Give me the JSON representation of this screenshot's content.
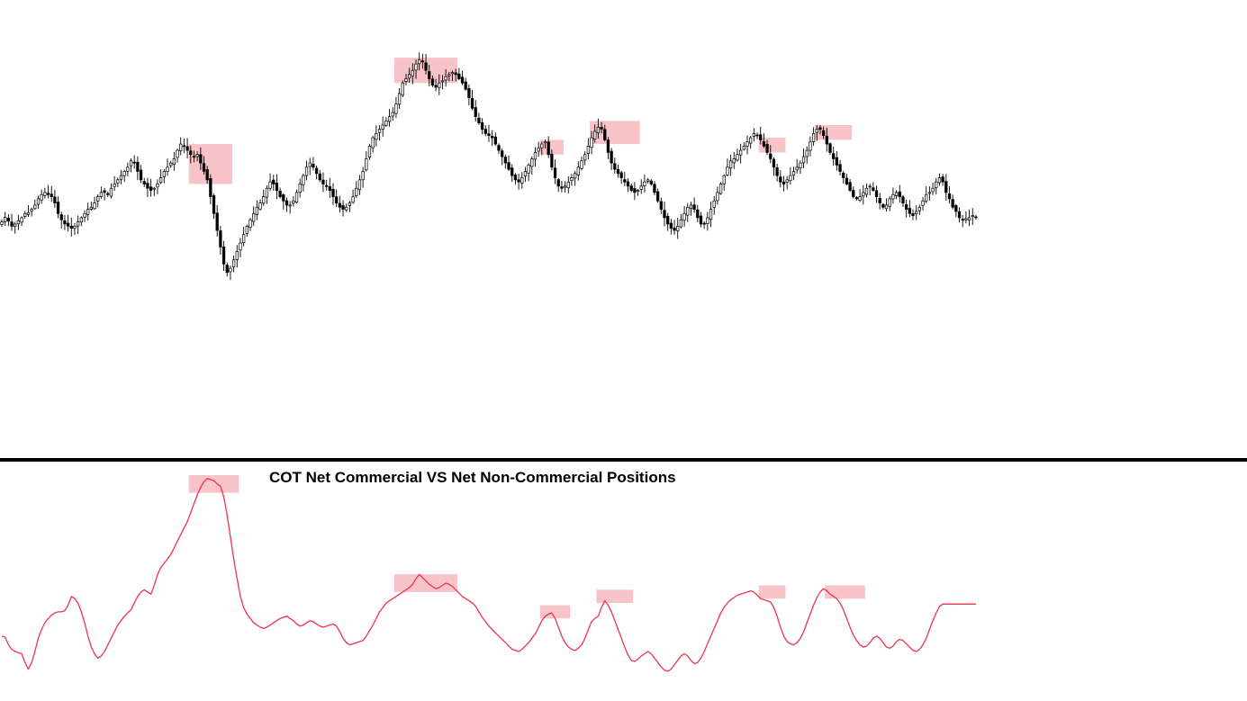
{
  "colors": {
    "background": "#ffffff",
    "bull_candle": "#ffffff",
    "bear_candle": "#000000",
    "candle_outline": "#000000",
    "wick": "#000000",
    "highlight": "#f7b9c0",
    "indicator_line": "#f0334b",
    "divider": "#000000",
    "title_text": "#000000"
  },
  "chart_data": [
    {
      "type": "candlestick",
      "title": "",
      "xlabel": "",
      "ylabel": "",
      "grid": false,
      "legend": "none",
      "x_count": 295,
      "ylim": [
        0,
        100
      ],
      "closes": [
        52.0,
        53.1,
        52.2,
        51.0,
        51.5,
        52.3,
        53.0,
        54.0,
        54.2,
        55.0,
        56.0,
        57.5,
        58.5,
        59.0,
        58.5,
        58.0,
        56.5,
        54.0,
        52.5,
        51.5,
        51.0,
        50.5,
        51.0,
        52.0,
        53.0,
        54.0,
        55.0,
        55.5,
        56.5,
        58.0,
        59.0,
        59.0,
        58.5,
        60.0,
        61.0,
        62.0,
        63.0,
        64.0,
        65.0,
        66.5,
        66.0,
        64.0,
        62.0,
        61.0,
        60.0,
        59.5,
        60.0,
        61.0,
        62.5,
        64.0,
        65.0,
        66.0,
        67.0,
        69.0,
        70.5,
        70.0,
        69.0,
        68.0,
        67.5,
        68.0,
        66.0,
        64.0,
        62.0,
        58.0,
        54.0,
        50.0,
        46.0,
        42.0,
        40.0,
        41.0,
        43.0,
        45.0,
        47.0,
        49.0,
        51.0,
        52.5,
        54.0,
        55.5,
        56.5,
        58.0,
        60.0,
        61.5,
        61.0,
        59.5,
        58.0,
        57.0,
        56.0,
        56.0,
        57.0,
        59.0,
        61.0,
        63.0,
        65.0,
        66.0,
        65.0,
        63.5,
        62.0,
        61.0,
        60.5,
        59.5,
        58.0,
        56.5,
        55.5,
        55.0,
        55.5,
        56.5,
        58.0,
        60.0,
        62.0,
        64.0,
        67.0,
        70.0,
        72.0,
        73.0,
        74.0,
        75.0,
        76.0,
        77.0,
        78.0,
        80.0,
        82.5,
        85.0,
        86.0,
        87.0,
        88.0,
        89.5,
        90.5,
        90.0,
        88.0,
        86.0,
        84.5,
        84.0,
        85.0,
        85.5,
        86.5,
        87.0,
        87.5,
        87.0,
        86.0,
        85.0,
        83.5,
        81.5,
        79.0,
        77.0,
        75.5,
        74.0,
        73.0,
        72.5,
        72.0,
        70.5,
        69.0,
        67.5,
        66.0,
        64.5,
        63.0,
        62.0,
        61.5,
        62.5,
        64.0,
        65.5,
        67.0,
        68.5,
        69.5,
        70.5,
        71.0,
        68.0,
        65.0,
        62.5,
        60.5,
        60.0,
        60.5,
        61.5,
        62.5,
        63.5,
        65.0,
        66.5,
        68.0,
        70.0,
        72.0,
        73.5,
        74.5,
        74.0,
        71.5,
        68.5,
        66.0,
        64.5,
        63.5,
        62.5,
        61.5,
        60.5,
        59.5,
        59.0,
        59.5,
        60.5,
        61.5,
        62.0,
        61.0,
        59.0,
        57.0,
        55.0,
        53.0,
        51.5,
        50.5,
        50.0,
        51.0,
        52.5,
        54.0,
        55.5,
        56.0,
        55.0,
        53.0,
        51.5,
        51.5,
        53.0,
        55.0,
        57.0,
        59.0,
        61.0,
        63.0,
        65.0,
        66.5,
        67.0,
        68.0,
        69.0,
        70.0,
        71.0,
        72.0,
        73.0,
        72.5,
        71.5,
        70.0,
        68.5,
        67.0,
        65.0,
        63.0,
        61.5,
        61.0,
        62.0,
        63.0,
        64.0,
        65.0,
        66.0,
        67.5,
        69.0,
        71.0,
        73.0,
        74.0,
        74.0,
        72.5,
        70.5,
        68.5,
        67.0,
        65.5,
        64.0,
        62.5,
        61.0,
        59.5,
        58.0,
        57.5,
        58.0,
        59.0,
        60.0,
        60.5,
        59.5,
        58.0,
        56.5,
        55.5,
        56.0,
        57.5,
        58.5,
        59.0,
        58.0,
        56.5,
        55.0,
        54.0,
        53.5,
        54.5,
        55.5,
        57.0,
        58.5,
        59.0,
        60.0,
        61.5,
        62.5,
        61.5,
        59.0,
        57.5,
        55.5,
        54.5,
        53.0,
        52.5,
        52.8,
        53.0,
        53.5,
        53.0
      ],
      "highlight_zones": [
        {
          "from": 57,
          "to": 69,
          "y_high": 70.5,
          "y_low": 61.0
        },
        {
          "from": 119,
          "to": 137,
          "y_high": 91.0,
          "y_low": 85.0
        },
        {
          "from": 163,
          "to": 169,
          "y_high": 71.5,
          "y_low": 68.0
        },
        {
          "from": 178,
          "to": 192,
          "y_high": 76.0,
          "y_low": 70.5
        },
        {
          "from": 229,
          "to": 236,
          "y_high": 72.0,
          "y_low": 68.5
        },
        {
          "from": 246,
          "to": 256,
          "y_high": 75.0,
          "y_low": 71.5
        }
      ]
    },
    {
      "type": "line",
      "title": "COT Net Commercial VS Net Non-Commercial Positions",
      "xlabel": "",
      "ylabel": "",
      "grid": false,
      "legend": "none",
      "x_count": 295,
      "ylim": [
        0,
        100
      ],
      "values": [
        27.0,
        26.5,
        23.0,
        21.0,
        20.0,
        19.5,
        19.0,
        15.0,
        12.0,
        15.0,
        20.0,
        26.0,
        30.0,
        33.0,
        35.0,
        36.5,
        37.5,
        38.0,
        38.0,
        38.5,
        41.0,
        45.0,
        44.0,
        42.0,
        38.0,
        33.0,
        27.0,
        22.0,
        19.0,
        17.0,
        18.0,
        20.0,
        23.0,
        26.0,
        29.0,
        32.0,
        34.0,
        36.0,
        37.5,
        39.0,
        42.0,
        45.0,
        47.0,
        48.0,
        47.0,
        46.0,
        50.0,
        55.0,
        58.0,
        60.0,
        62.0,
        64.0,
        67.0,
        70.0,
        73.0,
        76.0,
        79.0,
        83.0,
        87.0,
        91.0,
        94.5,
        97.0,
        98.5,
        98.0,
        97.5,
        96.0,
        95.0,
        90.0,
        82.0,
        72.0,
        62.0,
        53.0,
        45.0,
        40.0,
        37.0,
        35.0,
        33.0,
        32.0,
        31.0,
        30.5,
        31.0,
        32.0,
        33.0,
        34.0,
        35.0,
        35.5,
        36.0,
        35.0,
        34.0,
        32.5,
        31.5,
        32.0,
        33.0,
        34.0,
        33.5,
        32.5,
        31.5,
        31.0,
        31.5,
        32.0,
        32.5,
        31.5,
        29.0,
        26.0,
        24.0,
        23.0,
        23.5,
        24.0,
        24.5,
        25.0,
        27.0,
        29.5,
        32.0,
        35.0,
        38.0,
        40.0,
        42.0,
        43.0,
        44.0,
        45.0,
        46.0,
        47.0,
        48.0,
        49.0,
        50.5,
        53.0,
        55.0,
        53.5,
        52.0,
        50.5,
        49.5,
        48.5,
        49.0,
        50.0,
        51.0,
        50.5,
        49.5,
        48.0,
        46.5,
        45.0,
        44.0,
        43.0,
        42.0,
        40.5,
        38.0,
        35.5,
        33.5,
        31.5,
        30.0,
        28.5,
        27.0,
        25.5,
        24.0,
        22.5,
        21.0,
        20.5,
        20.0,
        21.0,
        22.5,
        24.0,
        26.0,
        28.0,
        31.0,
        34.0,
        36.0,
        37.0,
        37.5,
        35.0,
        31.0,
        27.0,
        24.0,
        22.0,
        21.0,
        20.5,
        21.5,
        23.0,
        26.0,
        30.0,
        33.5,
        35.0,
        36.0,
        40.0,
        43.0,
        41.0,
        38.0,
        34.0,
        30.0,
        26.0,
        22.0,
        18.5,
        16.0,
        15.5,
        16.5,
        18.0,
        19.0,
        20.0,
        19.0,
        17.0,
        15.0,
        13.0,
        11.5,
        11.0,
        12.0,
        14.0,
        16.0,
        18.0,
        19.0,
        18.0,
        16.0,
        14.5,
        15.0,
        17.0,
        20.0,
        23.5,
        27.0,
        30.5,
        34.0,
        37.5,
        40.0,
        42.0,
        43.5,
        44.5,
        45.5,
        46.0,
        46.5,
        47.0,
        47.5,
        47.0,
        45.5,
        44.0,
        43.5,
        43.0,
        42.5,
        40.0,
        36.0,
        31.0,
        27.0,
        24.5,
        23.5,
        23.0,
        24.0,
        26.0,
        29.0,
        33.0,
        37.0,
        41.0,
        44.5,
        47.0,
        48.5,
        47.5,
        46.0,
        45.0,
        44.0,
        42.0,
        39.0,
        35.0,
        31.0,
        27.5,
        25.0,
        23.0,
        22.0,
        22.5,
        24.0,
        26.0,
        27.0,
        26.0,
        24.0,
        22.0,
        21.5,
        22.5,
        24.5,
        25.5,
        25.0,
        23.5,
        22.0,
        20.5,
        20.0,
        21.0,
        23.0,
        26.0,
        30.0,
        34.0,
        37.5,
        40.5,
        41.5,
        41.5,
        41.5,
        41.5,
        41.5,
        41.5,
        41.5,
        41.5,
        41.5,
        41.5,
        41.5
      ],
      "highlight_zones": [
        {
          "from": 57,
          "to": 71,
          "y_high": 100.0,
          "y_low": 92.0
        },
        {
          "from": 119,
          "to": 137,
          "y_high": 55.0,
          "y_low": 47.0
        },
        {
          "from": 163,
          "to": 171,
          "y_high": 41.0,
          "y_low": 35.0
        },
        {
          "from": 180,
          "to": 190,
          "y_high": 48.0,
          "y_low": 42.0
        },
        {
          "from": 229,
          "to": 236,
          "y_high": 50.0,
          "y_low": 44.0
        },
        {
          "from": 249,
          "to": 260,
          "y_high": 50.0,
          "y_low": 44.0
        }
      ]
    }
  ]
}
